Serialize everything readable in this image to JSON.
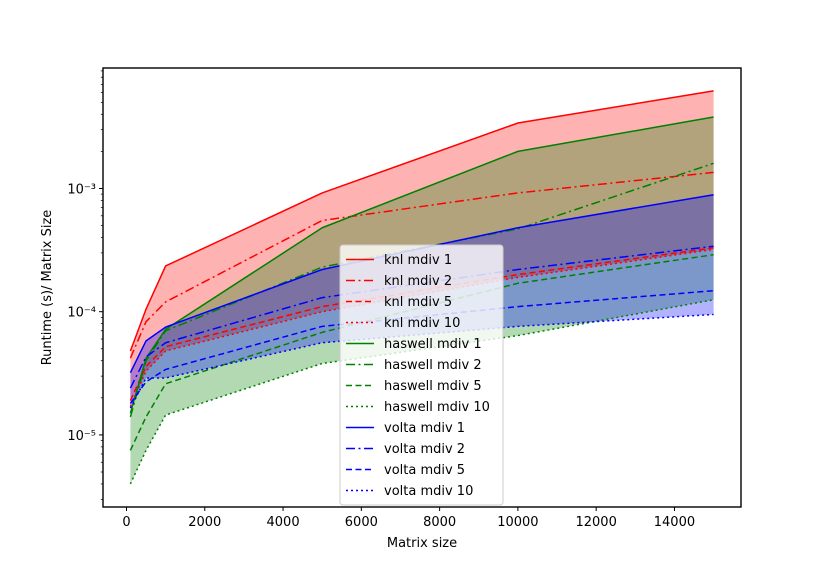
{
  "chart_data": {
    "type": "line",
    "title": "",
    "xlabel": "Matrix size",
    "ylabel": "Runtime (s)/ Matrix Size",
    "xlim": [
      -600,
      15700
    ],
    "ylim": [
      2.6e-06,
      0.0095
    ],
    "yscale": "log",
    "xticks": [
      0,
      2000,
      4000,
      6000,
      8000,
      10000,
      12000,
      14000
    ],
    "xtick_labels": [
      "0",
      "2000",
      "4000",
      "6000",
      "8000",
      "10000",
      "12000",
      "14000"
    ],
    "yticks": [
      1e-05,
      0.0001,
      0.001
    ],
    "ytick_labels": [
      "10⁻⁵",
      "10⁻⁴",
      "10⁻³"
    ],
    "legend_position": "center",
    "x": [
      100,
      500,
      1000,
      5000,
      10000,
      15000
    ],
    "series": [
      {
        "name": "knl mdiv 1",
        "color": "#ff0000",
        "style": "solid",
        "values": [
          4.8e-05,
          0.000105,
          0.000235,
          0.00092,
          0.0034,
          0.0062
        ]
      },
      {
        "name": "knl mdiv 2",
        "color": "#ff0000",
        "style": "dashdot",
        "values": [
          4.2e-05,
          8.3e-05,
          0.00012,
          0.00055,
          0.00092,
          0.00135
        ]
      },
      {
        "name": "knl mdiv 5",
        "color": "#ff0000",
        "style": "dashed",
        "values": [
          1.9e-05,
          3.6e-05,
          5.2e-05,
          0.00011,
          0.0002,
          0.00033
        ]
      },
      {
        "name": "knl mdiv 10",
        "color": "#ff0000",
        "style": "dotted",
        "values": [
          1.7e-05,
          3.3e-05,
          4.8e-05,
          0.0001,
          0.00019,
          0.00032
        ]
      },
      {
        "name": "haswell mdiv 1",
        "color": "#008000",
        "style": "solid",
        "values": [
          1.5e-05,
          4.2e-05,
          7.2e-05,
          0.00048,
          0.002,
          0.0038
        ]
      },
      {
        "name": "haswell mdiv 2",
        "color": "#008000",
        "style": "dashdot",
        "values": [
          1.4e-05,
          4e-05,
          7e-05,
          0.00023,
          0.00047,
          0.0016
        ]
      },
      {
        "name": "haswell mdiv 5",
        "color": "#008000",
        "style": "dashed",
        "values": [
          7.5e-06,
          1.4e-05,
          2.6e-05,
          6.8e-05,
          0.00017,
          0.00029
        ]
      },
      {
        "name": "haswell mdiv 10",
        "color": "#008000",
        "style": "dotted",
        "values": [
          4e-06,
          7.5e-06,
          1.45e-05,
          3.8e-05,
          6.4e-05,
          0.000125
        ]
      },
      {
        "name": "volta mdiv 1",
        "color": "#0000ff",
        "style": "solid",
        "values": [
          3.2e-05,
          5.8e-05,
          7.5e-05,
          0.00022,
          0.00048,
          0.00089
        ]
      },
      {
        "name": "volta mdiv 2",
        "color": "#0000ff",
        "style": "dashdot",
        "values": [
          2.4e-05,
          4.3e-05,
          5.6e-05,
          0.00013,
          0.00022,
          0.00034
        ]
      },
      {
        "name": "volta mdiv 5",
        "color": "#0000ff",
        "style": "dashed",
        "values": [
          1.8e-05,
          2.7e-05,
          3.4e-05,
          7.6e-05,
          0.00011,
          0.000148
        ]
      },
      {
        "name": "volta mdiv 10",
        "color": "#0000ff",
        "style": "dotted",
        "values": [
          1.65e-05,
          2.9e-05,
          2.9e-05,
          5.6e-05,
          7.6e-05,
          9.5e-05
        ]
      }
    ],
    "bands": [
      {
        "upper": "knl mdiv 1",
        "lower": "knl mdiv 10",
        "color": "#ff0000",
        "opacity": 0.3
      },
      {
        "upper": "haswell mdiv 1",
        "lower": "haswell mdiv 10",
        "color": "#008000",
        "opacity": 0.3
      },
      {
        "upper": "volta mdiv 1",
        "lower": "volta mdiv 10",
        "color": "#0000ff",
        "opacity": 0.3
      }
    ]
  }
}
